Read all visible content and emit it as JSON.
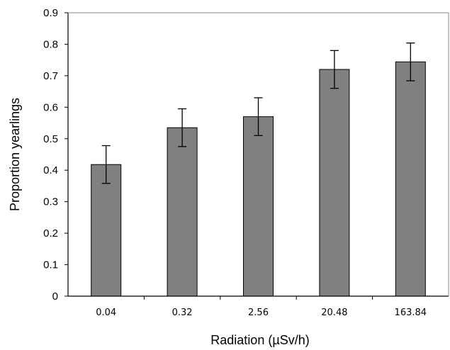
{
  "chart_data": {
    "type": "bar",
    "title": "",
    "xlabel": "Radiation (µSv/h)",
    "ylabel": "Proportion yearlings",
    "categories": [
      "0.04",
      "0.32",
      "2.56",
      "20.48",
      "163.84"
    ],
    "values": [
      0.418,
      0.535,
      0.57,
      0.72,
      0.744
    ],
    "errors": [
      0.06,
      0.06,
      0.06,
      0.06,
      0.06
    ],
    "ylim": [
      0,
      0.9
    ],
    "yticks": [
      "0",
      "0.1",
      "0.2",
      "0.3",
      "0.4",
      "0.5",
      "0.6",
      "0.7",
      "0.8",
      "0.9"
    ],
    "grid": false,
    "legend": "none",
    "bar_color": "#808080",
    "bar_edge_color": "#000000"
  }
}
